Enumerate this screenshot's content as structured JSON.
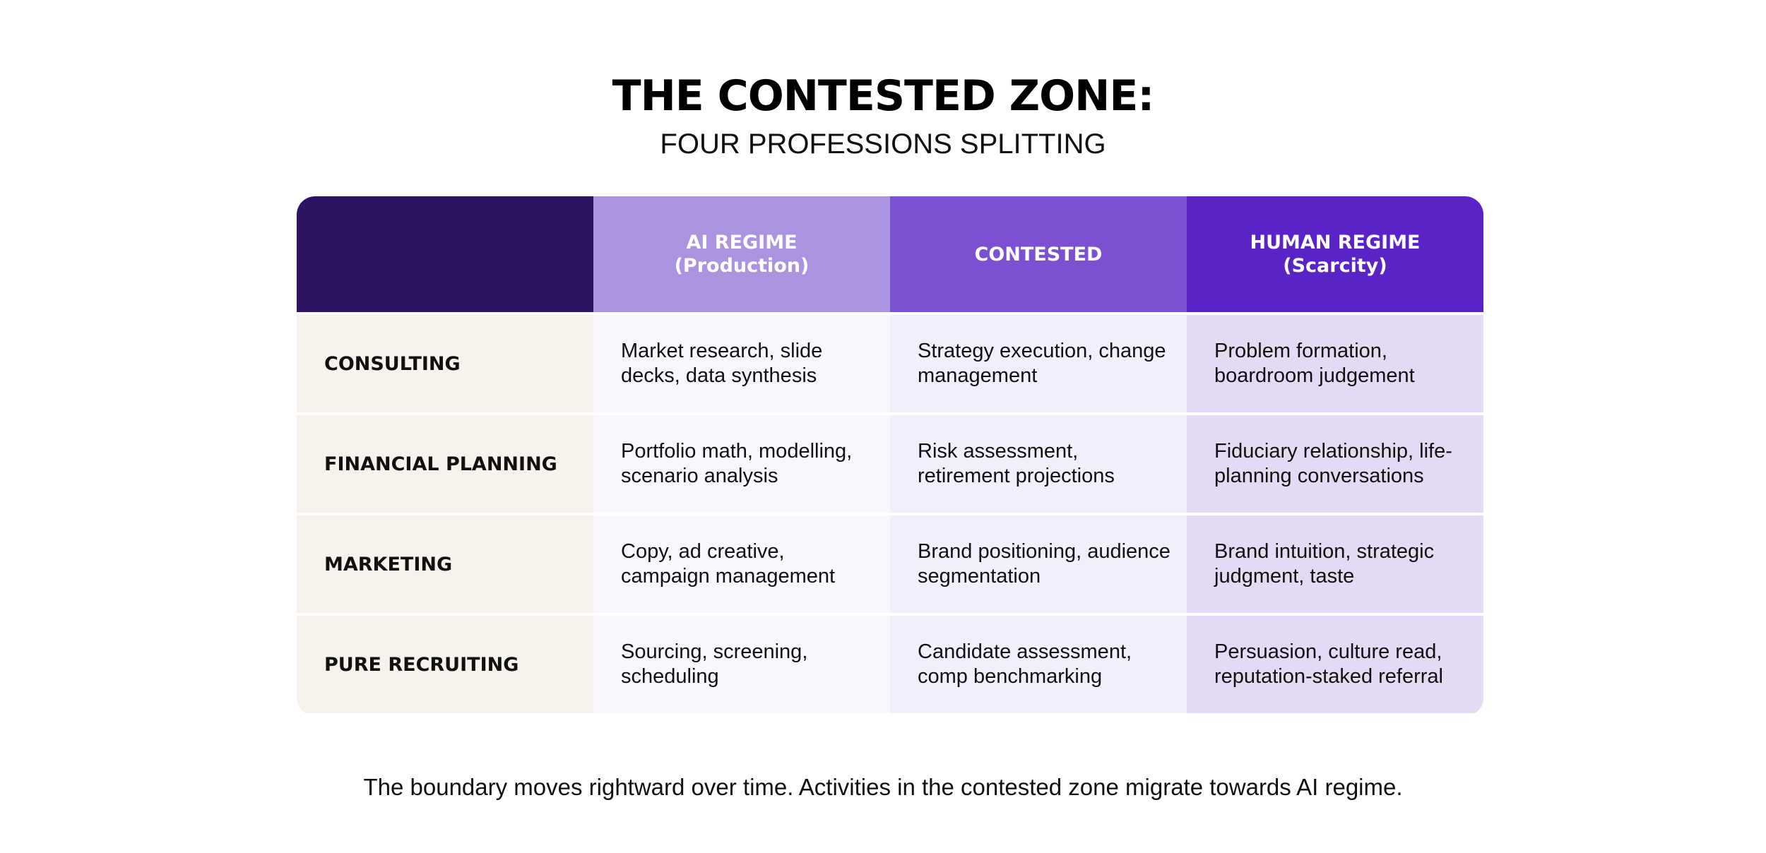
{
  "title": "THE CONTESTED ZONE:",
  "subtitle": "FOUR PROFESSIONS SPLITTING",
  "table": {
    "headers": [
      "",
      "AI REGIME\n(Production)",
      "CONTESTED",
      "HUMAN REGIME\n(Scarcity)"
    ],
    "rows": [
      {
        "label": "CONSULTING",
        "ai": "Market research, slide decks, data synthesis",
        "contested": "Strategy execution, change management",
        "human": "Problem formation, boardroom judgement"
      },
      {
        "label": "FINANCIAL PLANNING",
        "ai": "Portfolio math, modelling, scenario analysis",
        "contested": "Risk assessment, retirement projections",
        "human": "Fiduciary relationship, life-planning conversations"
      },
      {
        "label": "MARKETING",
        "ai": "Copy, ad creative, campaign management",
        "contested": "Brand positioning, audience segmentation",
        "human": "Brand intuition, strategic judgment, taste"
      },
      {
        "label": "PURE RECRUITING",
        "ai": "Sourcing, screening, scheduling",
        "contested": "Candidate assessment, comp benchmarking",
        "human": "Persuasion, culture read, reputation-staked referral"
      }
    ]
  },
  "footnote": "The boundary moves rightward over time. Activities in the contested zone migrate towards AI regime.",
  "colors": {
    "header_corner": "#2e1462",
    "header_ai": "#ac93e0",
    "header_contested": "#7b51d1",
    "header_human": "#5a23c6",
    "row_label_bg": "#f6f2ec",
    "ai_cell_bg": "#f9f7fd",
    "contested_cell_bg": "#f2eefb",
    "human_cell_bg": "#e3daf4"
  }
}
